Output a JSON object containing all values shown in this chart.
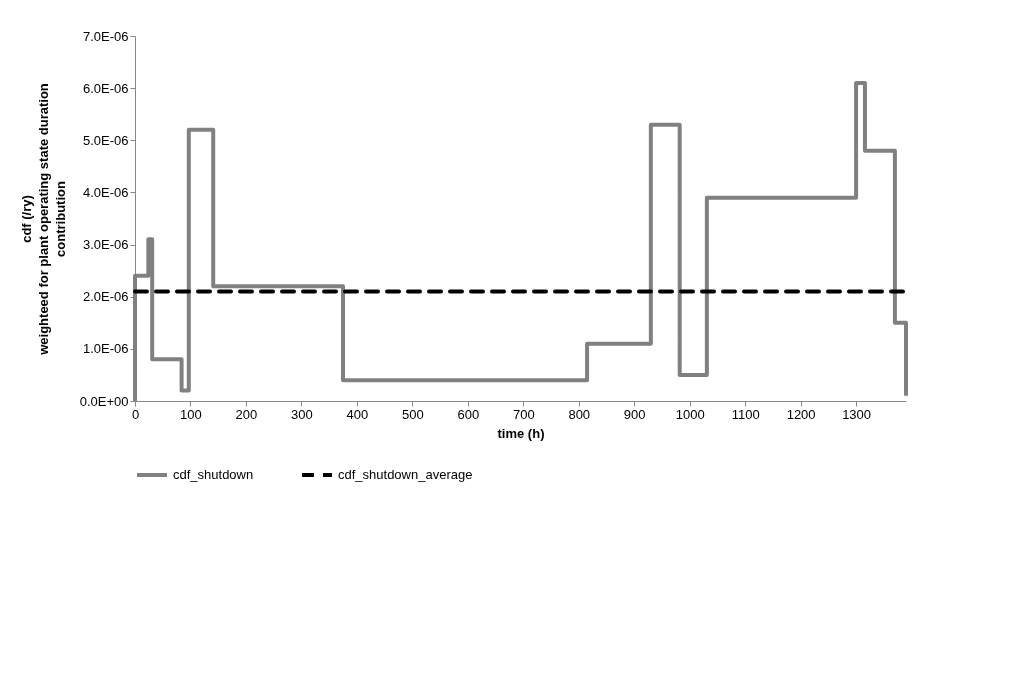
{
  "chart_data": {
    "type": "line",
    "xlabel": "time (h)",
    "ylabel": "cdf (/ry)\nweighteed for plant operating state duration\ncontribution",
    "xlim": [
      0,
      1390
    ],
    "xticks": [
      0,
      100,
      200,
      300,
      400,
      500,
      600,
      700,
      800,
      900,
      1000,
      1100,
      1200,
      1300
    ],
    "ylim": [
      0,
      7e-06
    ],
    "yticks": [
      {
        "value": 0,
        "label": "0.0E+00"
      },
      {
        "value": 1e-06,
        "label": "1.0E-06"
      },
      {
        "value": 2e-06,
        "label": "2.0E-06"
      },
      {
        "value": 3e-06,
        "label": "3.0E-06"
      },
      {
        "value": 4e-06,
        "label": "4.0E-06"
      },
      {
        "value": 5e-06,
        "label": "5.0E-06"
      },
      {
        "value": 6e-06,
        "label": "6.0E-06"
      },
      {
        "value": 7e-06,
        "label": "7.0E-06"
      }
    ],
    "grid": false,
    "legend": "bottom",
    "series": [
      {
        "name": "cdf_shutdown",
        "type": "step",
        "color": "#808080",
        "line_style": "solid",
        "x": [
          0,
          0,
          24,
          31,
          84,
          97,
          141,
          375,
          815,
          930,
          982,
          1031,
          1300,
          1316,
          1370,
          1390
        ],
        "values": [
          0,
          2.4e-06,
          3.1e-06,
          8e-07,
          2e-07,
          5.2e-06,
          2.2e-06,
          4e-07,
          1.1e-06,
          5.3e-06,
          5e-07,
          3.9e-06,
          6.1e-06,
          4.8e-06,
          1.5e-06,
          1e-07
        ]
      },
      {
        "name": "cdf_shutdown_average",
        "type": "line",
        "color": "#000000",
        "line_style": "dashed",
        "x": [
          0,
          1390
        ],
        "values": [
          2.1e-06,
          2.1e-06
        ]
      }
    ]
  }
}
